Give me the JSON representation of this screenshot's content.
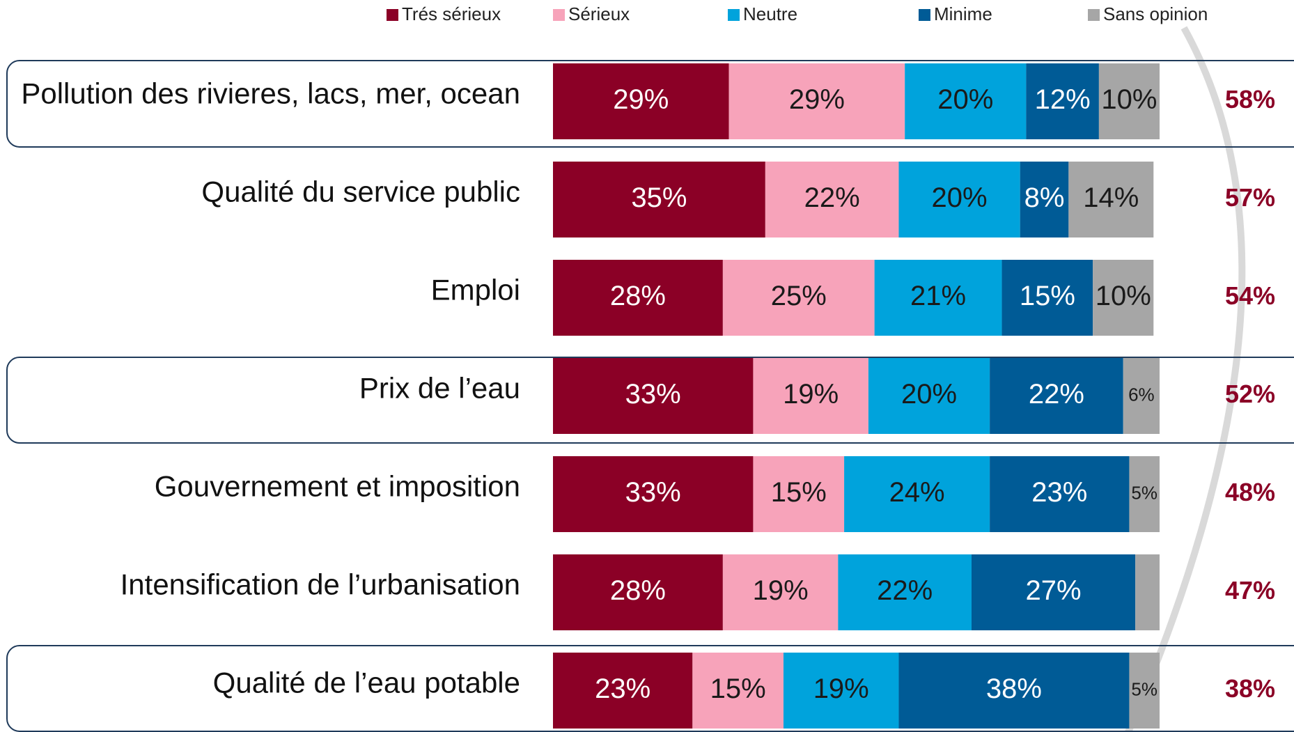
{
  "chart_data": {
    "type": "stacked-bar-horizontal",
    "categories": [
      "Pollution des rivieres, lacs, mer, ocean",
      "Qualité du service public",
      "Emploi",
      "Prix de l’eau",
      "Gouvernement et imposition",
      "Intensification de l’urbanisation",
      "Qualité de l’eau potable"
    ],
    "xlim": [
      0,
      100
    ],
    "series": [
      {
        "name": "Trés sérieux",
        "color": "#8b0026",
        "label_color": "#ffffff",
        "values": [
          29,
          35,
          28,
          33,
          33,
          28,
          23
        ],
        "value_labels": [
          "29%",
          "35%",
          "28%",
          "33%",
          "33%",
          "28%",
          "23%"
        ]
      },
      {
        "name": "Sérieux",
        "color": "#f7a3ba",
        "label_color": "#1a1a1a",
        "values": [
          29,
          22,
          25,
          19,
          15,
          19,
          15
        ],
        "value_labels": [
          "29%",
          "22%",
          "25%",
          "19%",
          "15%",
          "19%",
          "15%"
        ]
      },
      {
        "name": "Neutre",
        "color": "#00a3dc",
        "label_color": "#1a1a1a",
        "values": [
          20,
          20,
          21,
          20,
          24,
          22,
          19
        ],
        "value_labels": [
          "20%",
          "20%",
          "21%",
          "20%",
          "24%",
          "22%",
          "19%"
        ]
      },
      {
        "name": "Minime",
        "color": "#005b96",
        "label_color": "#ffffff",
        "values": [
          12,
          8,
          15,
          22,
          23,
          27,
          38
        ],
        "value_labels": [
          "12%",
          "8%",
          "15%",
          "22%",
          "23%",
          "27%",
          "38%"
        ]
      },
      {
        "name": "Sans opinion",
        "color": "#a6a6a6",
        "label_color": "#1a1a1a",
        "values": [
          10,
          14,
          10,
          6,
          5,
          4,
          5
        ],
        "value_labels": [
          "10%",
          "14%",
          "10%",
          "6%",
          "5%",
          null,
          "5%"
        ]
      }
    ],
    "totals": {
      "color": "#8b0026",
      "values": [
        58,
        57,
        54,
        52,
        48,
        47,
        38
      ],
      "value_labels": [
        "58%",
        "57%",
        "54%",
        "52%",
        "48%",
        "47%",
        "38%"
      ]
    }
  }
}
